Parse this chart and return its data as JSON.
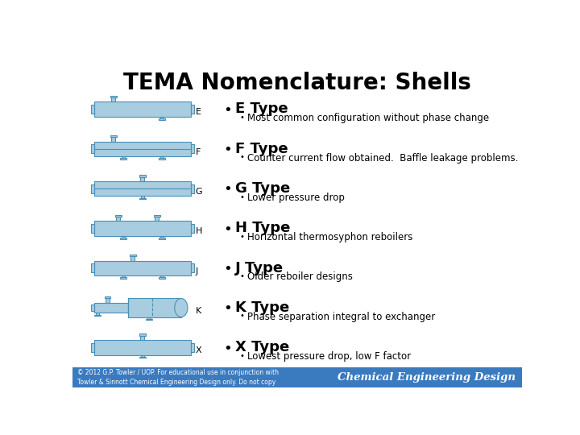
{
  "title": "TEMA Nomenclature: Shells",
  "shell_fill": "#a8cce0",
  "shell_edge": "#4a90b8",
  "shell_fill2": "#b8d8ec",
  "types": [
    {
      "letter": "E",
      "type": "E",
      "title": "E Type",
      "desc": "Most common configuration without phase change"
    },
    {
      "letter": "F",
      "type": "F",
      "title": "F Type",
      "desc": "Counter current flow obtained.  Baffle leakage problems."
    },
    {
      "letter": "G",
      "type": "G",
      "title": "G Type",
      "desc": "Lower pressure drop"
    },
    {
      "letter": "H",
      "type": "H",
      "title": "H Type",
      "desc": "Horizontal thermosyphon reboilers"
    },
    {
      "letter": "J",
      "type": "J",
      "title": "J Type",
      "desc": "Older reboiler designs"
    },
    {
      "letter": "K",
      "type": "K",
      "title": "K Type",
      "desc": "Phase separation integral to exchanger"
    },
    {
      "letter": "X",
      "type": "X",
      "title": "X Type",
      "desc": "Lowest pressure drop, low F factor"
    }
  ],
  "footer_left": "© 2012 G.P. Towler / UOP. For educational use in conjunction with\nTowler & Sinnott Chemical Engineering Design only. Do not copy",
  "footer_right": "Chemical Engineering Design",
  "footer_bg": "#3a7abf",
  "title_fontsize": 20,
  "type_fontsize": 13,
  "desc_fontsize": 8.5,
  "letter_fontsize": 8
}
